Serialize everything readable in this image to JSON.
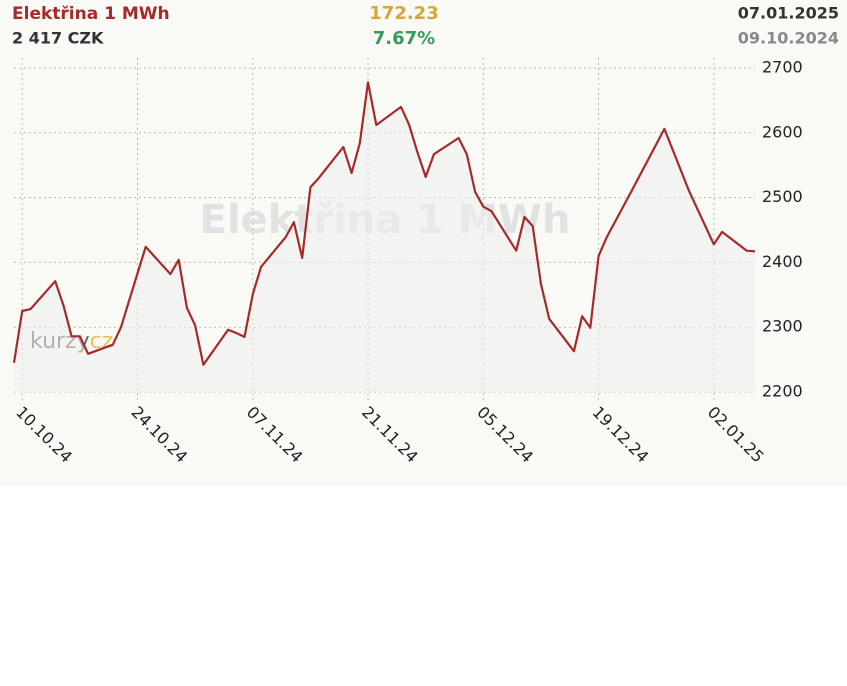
{
  "chart_data": {
    "type": "line",
    "title": "Elektřina 1 MWh",
    "last_price": "2 417 CZK",
    "change": "172.23",
    "change_pct": "7.67%",
    "date_end": "07.01.2025",
    "date_start": "09.10.2024",
    "logo": [
      "kurzy",
      "cz"
    ],
    "x": [
      "2024-10-09",
      "2024-10-10",
      "2024-10-11",
      "2024-10-14",
      "2024-10-15",
      "2024-10-16",
      "2024-10-17",
      "2024-10-18",
      "2024-10-21",
      "2024-10-22",
      "2024-10-23",
      "2024-10-25",
      "2024-10-28",
      "2024-10-29",
      "2024-10-30",
      "2024-10-31",
      "2024-11-01",
      "2024-11-04",
      "2024-11-05",
      "2024-11-06",
      "2024-11-07",
      "2024-11-08",
      "2024-11-11",
      "2024-11-12",
      "2024-11-13",
      "2024-11-14",
      "2024-11-15",
      "2024-11-18",
      "2024-11-19",
      "2024-11-20",
      "2024-11-21",
      "2024-11-22",
      "2024-11-25",
      "2024-11-26",
      "2024-11-27",
      "2024-11-28",
      "2024-11-29",
      "2024-12-02",
      "2024-12-03",
      "2024-12-04",
      "2024-12-05",
      "2024-12-06",
      "2024-12-09",
      "2024-12-10",
      "2024-12-11",
      "2024-12-12",
      "2024-12-13",
      "2024-12-16",
      "2024-12-17",
      "2024-12-18",
      "2024-12-19",
      "2024-12-20",
      "2024-12-23",
      "2024-12-27",
      "2024-12-30",
      "2025-01-02",
      "2025-01-03",
      "2025-01-06",
      "2025-01-07"
    ],
    "series": [
      {
        "name": "Elektřina 1 MWh",
        "color": "#a52a2a",
        "values": [
          2245,
          2325,
          2328,
          2371,
          2334,
          2286,
          2286,
          2259,
          2273,
          2300,
          2342,
          2424,
          2382,
          2404,
          2330,
          2303,
          2242,
          2296,
          2291,
          2285,
          2351,
          2393,
          2439,
          2462,
          2407,
          2516,
          2530,
          2578,
          2538,
          2584,
          2678,
          2612,
          2640,
          2612,
          2570,
          2532,
          2567,
          2592,
          2567,
          2509,
          2486,
          2479,
          2418,
          2470,
          2456,
          2367,
          2313,
          2263,
          2317,
          2299,
          2410,
          2439,
          2510,
          2606,
          2510,
          2428,
          2447,
          2418,
          2417
        ]
      }
    ],
    "xlim": [
      "2024-10-09",
      "2025-01-07"
    ],
    "xticks": [
      {
        "value": "2024-10-10",
        "label": "10.10.24"
      },
      {
        "value": "2024-10-24",
        "label": "24.10.24"
      },
      {
        "value": "2024-11-07",
        "label": "07.11.24"
      },
      {
        "value": "2024-11-21",
        "label": "21.11.24"
      },
      {
        "value": "2024-12-05",
        "label": "05.12.24"
      },
      {
        "value": "2024-12-19",
        "label": "19.12.24"
      },
      {
        "value": "2025-01-02",
        "label": "02.01.25"
      }
    ],
    "ylim": [
      2200,
      2700
    ],
    "yticks": [
      2200,
      2300,
      2400,
      2500,
      2600,
      2700
    ],
    "grid": true
  }
}
